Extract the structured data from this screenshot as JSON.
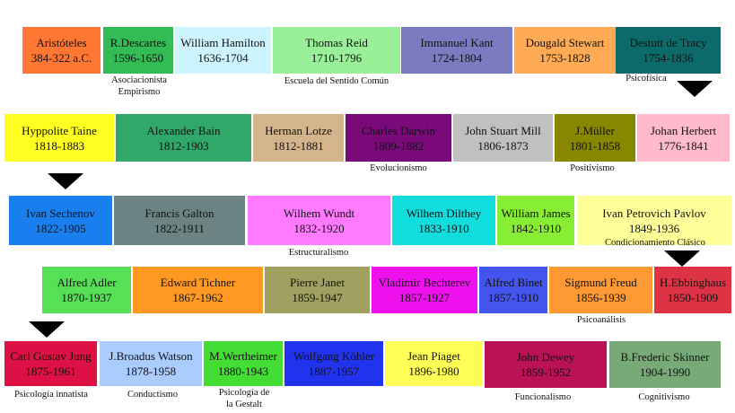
{
  "rows": [
    [
      {
        "name": "Aristóteles",
        "dates": "384-322 a.C.",
        "color": "#ff7733"
      },
      {
        "name": "R.Descartes",
        "dates": "1596-1650",
        "color": "#33bb55"
      },
      {
        "name": "William Hamilton",
        "dates": "1636-1704",
        "color": "#ccf5ff"
      },
      {
        "name": "Thomas Reid",
        "dates": "1710-1796",
        "color": "#99f099"
      },
      {
        "name": "Immanuel Kant",
        "dates": "1724-1804",
        "color": "#7b7bc2"
      },
      {
        "name": "Dougald Stewart",
        "dates": "1753-1828",
        "color": "#ffaa55"
      },
      {
        "name": "Destutt de Tracy",
        "dates": "1754-1836",
        "color": "#0c6a6a"
      }
    ],
    [
      {
        "name": "Hyppolite Taine",
        "dates": "1818-1883",
        "color": "#ffff22"
      },
      {
        "name": "Alexander Bain",
        "dates": "1812-1903",
        "color": "#2fa86a"
      },
      {
        "name": "Herman Lotze",
        "dates": "1812-1881",
        "color": "#d4b48a"
      },
      {
        "name": "Charles Darwin",
        "dates": "1809-1882",
        "color": "#7a0a7a"
      },
      {
        "name": "John Stuart Mill",
        "dates": "1806-1873",
        "color": "#c0c0c0"
      },
      {
        "name": "J.Müller",
        "dates": "1801-1858",
        "color": "#888800"
      },
      {
        "name": "Johan Herbert",
        "dates": "1776-1841",
        "color": "#ffbbcc"
      }
    ],
    [
      {
        "name": "Ivan Sechenov",
        "dates": "1822-1905",
        "color": "#1a7fee"
      },
      {
        "name": "Francis Galton",
        "dates": "1822-1911",
        "color": "#6b8383"
      },
      {
        "name": "Wilhem Wundt",
        "dates": "1832-1920",
        "color": "#ff7aff"
      },
      {
        "name": "Wilhem Dilthey",
        "dates": "1833-1910",
        "color": "#11dddd"
      },
      {
        "name": "William James",
        "dates": "1842-1910",
        "color": "#88ee33"
      },
      {
        "name": "Ivan Petrovich Pavlov",
        "dates": "1849-1936",
        "color": "#ffff99"
      }
    ],
    [
      {
        "name": "Alfred Adler",
        "dates": "1870-1937",
        "color": "#55e055"
      },
      {
        "name": "Edward Tichner",
        "dates": "1867-1962",
        "color": "#ff9922"
      },
      {
        "name": "Pierre Janet",
        "dates": "1859-1947",
        "color": "#a0a060"
      },
      {
        "name": "Vladimir Bechterev",
        "dates": "1857-1927",
        "color": "#ee11ee"
      },
      {
        "name": "Alfred Binet",
        "dates": "1857-1910",
        "color": "#4455ee"
      },
      {
        "name": "Sigmund Freud",
        "dates": "1856-1939",
        "color": "#ff9933"
      },
      {
        "name": "H.Ebbinghaus",
        "dates": "1850-1909",
        "color": "#dd3344"
      }
    ],
    [
      {
        "name": "Carl Gustav Jung",
        "dates": "1875-1961",
        "color": "#dd1144"
      },
      {
        "name": "J.Broadus Watson",
        "dates": "1878-1958",
        "color": "#aaccff"
      },
      {
        "name": "M.Wertheimer",
        "dates": "1880-1943",
        "color": "#44dd33"
      },
      {
        "name": "Wolfgang Köhler",
        "dates": "1887-1957",
        "color": "#2233ee"
      },
      {
        "name": "Jean Piaget",
        "dates": "1896-1980",
        "color": "#ffff55"
      },
      {
        "name": "John Dewey",
        "dates": "1859-1952",
        "color": "#bb1155"
      },
      {
        "name": "B.Frederic Skinner",
        "dates": "1904-1990",
        "color": "#77aa77"
      }
    ]
  ],
  "schools": [
    [
      "Asociacionista",
      "Empirismo"
    ],
    [
      "Escuela del Sentido Común"
    ],
    [
      "Psicofísica"
    ],
    [
      "Evolucionismo"
    ],
    [
      "Positivismo"
    ],
    [
      "Estructuralismo"
    ],
    [
      "Condicionamiento Clásico"
    ],
    [
      "Psicoanálisis"
    ],
    [
      "Psicología innatista"
    ],
    [
      "Conductismo"
    ],
    [
      "Psicología de",
      "la Gestalt"
    ],
    [
      "Funcionalismo"
    ],
    [
      "Cognitivismo"
    ]
  ]
}
